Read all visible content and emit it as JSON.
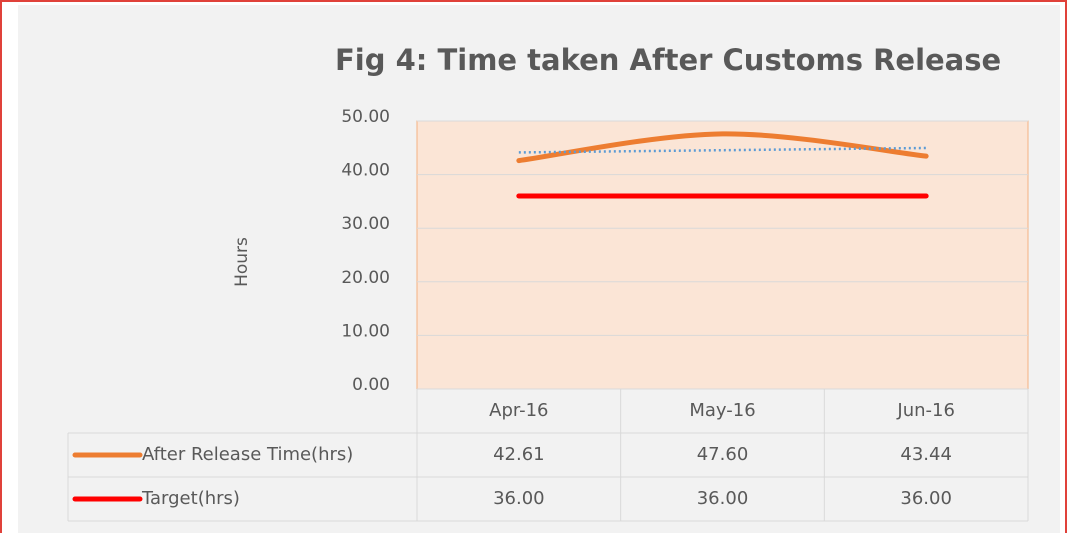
{
  "chart_data": {
    "type": "line",
    "title": "Fig 4: Time taken After Customs Release",
    "y_label": "Hours",
    "categories": [
      "Apr-16",
      "May-16",
      "Jun-16"
    ],
    "series": [
      {
        "name": "After Release Time(hrs)",
        "color": "#ed7d31",
        "values": [
          42.61,
          47.6,
          43.44
        ],
        "value_labels": [
          "42.61",
          "47.60",
          "43.44"
        ],
        "smooth": true,
        "trendline_color": "#5b9bd5"
      },
      {
        "name": "Target(hrs)",
        "color": "#ff0000",
        "values": [
          36,
          36,
          36
        ],
        "value_labels": [
          "36.00",
          "36.00",
          "36.00"
        ],
        "smooth": false
      }
    ],
    "ylim": [
      0,
      50
    ],
    "yticks": [
      {
        "value": 0,
        "label": "0.00"
      },
      {
        "value": 10,
        "label": "10.00"
      },
      {
        "value": 20,
        "label": "20.00"
      },
      {
        "value": 30,
        "label": "30.00"
      },
      {
        "value": 40,
        "label": "40.00"
      },
      {
        "value": 50,
        "label": "50.00"
      }
    ],
    "grid": true,
    "data_table": true,
    "plot_background": "#fbe5d6"
  }
}
